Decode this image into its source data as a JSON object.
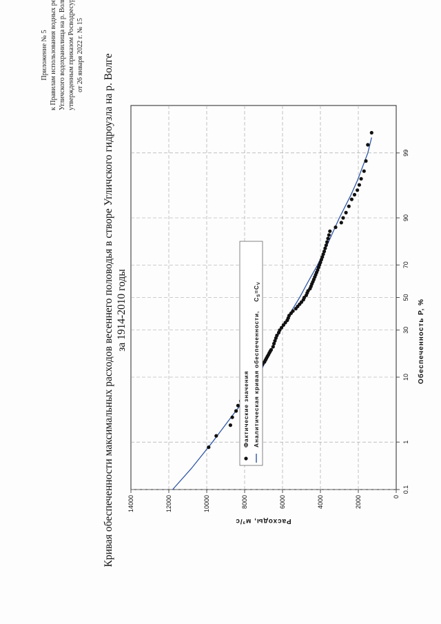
{
  "appendix": {
    "line1": "Приложение № 5",
    "line2": "к Правилам использования водных ресурсов",
    "line3": "Угличского водохранилища на р. Волге,",
    "line4": "утвержденным приказом Росводресурсов",
    "line5": "от 26 января 2022 г. № 15"
  },
  "title": {
    "line1": "Кривая обеспеченности максимальных расходов весеннего половодья в створе Угличского гидроузла на р. Волге",
    "line2": "за 1914-2010 годы"
  },
  "chart_data": {
    "type": "scatter",
    "xlabel": "Обеспеченность P, %",
    "ylabel": "Расходы, м³/с",
    "x_scale": "probability",
    "x_ticks": [
      "0.1",
      "1",
      "10",
      "30",
      "50",
      "70",
      "90",
      "99"
    ],
    "x_tick_values": [
      0.1,
      1,
      10,
      30,
      50,
      70,
      90,
      99
    ],
    "y_ticks": [
      "0",
      "2000",
      "4000",
      "6000",
      "8000",
      "10000",
      "12000",
      "14000"
    ],
    "y_tick_values": [
      0,
      2000,
      4000,
      6000,
      8000,
      10000,
      12000,
      14000
    ],
    "ylim": [
      0,
      14000
    ],
    "xlim": [
      0.1,
      99.9
    ],
    "grid": true,
    "legend_position": "top-left",
    "legend": {
      "points_label": "Фактические значения",
      "curve_label_prefix": "Аналитическая кривая обеспеченности,",
      "curve_formula_cs": "C",
      "curve_formula_cs_sub": "S",
      "curve_formula_eq": "=C",
      "curve_formula_cv_sub": "V"
    },
    "colors": {
      "points": "#111111",
      "curve": "#2f56a6",
      "grid": "#9a9a9a"
    },
    "series": [
      {
        "name": "Фактические значения",
        "points": [
          [
            0.8,
            9900
          ],
          [
            1.3,
            9500
          ],
          [
            2.0,
            8750
          ],
          [
            2.7,
            8650
          ],
          [
            3.4,
            8450
          ],
          [
            4.1,
            8350
          ],
          [
            4.8,
            8200
          ],
          [
            5.6,
            8050
          ],
          [
            6.3,
            7900
          ],
          [
            7.0,
            7850
          ],
          [
            7.7,
            7750
          ],
          [
            8.5,
            7650
          ],
          [
            9.2,
            7500
          ],
          [
            9.9,
            7450
          ],
          [
            10.6,
            7400
          ],
          [
            11.3,
            7350
          ],
          [
            12.1,
            7300
          ],
          [
            12.8,
            7200
          ],
          [
            13.5,
            7150
          ],
          [
            14.2,
            7050
          ],
          [
            15.0,
            6950
          ],
          [
            15.7,
            6900
          ],
          [
            16.4,
            6850
          ],
          [
            17.1,
            6800
          ],
          [
            17.8,
            6750
          ],
          [
            18.6,
            6700
          ],
          [
            19.3,
            6650
          ],
          [
            20.0,
            6600
          ],
          [
            21.4,
            6500
          ],
          [
            22.9,
            6450
          ],
          [
            24.3,
            6400
          ],
          [
            25.7,
            6350
          ],
          [
            27.1,
            6300
          ],
          [
            28.6,
            6200
          ],
          [
            30.0,
            6150
          ],
          [
            31.4,
            6050
          ],
          [
            32.9,
            5950
          ],
          [
            34.3,
            5850
          ],
          [
            35.7,
            5750
          ],
          [
            37.1,
            5700
          ],
          [
            38.6,
            5650
          ],
          [
            40.0,
            5550
          ],
          [
            41.4,
            5450
          ],
          [
            42.9,
            5300
          ],
          [
            44.3,
            5200
          ],
          [
            45.7,
            5100
          ],
          [
            47.1,
            5000
          ],
          [
            48.6,
            4900
          ],
          [
            50.0,
            4850
          ],
          [
            51.4,
            4750
          ],
          [
            52.9,
            4700
          ],
          [
            54.3,
            4650
          ],
          [
            55.7,
            4550
          ],
          [
            57.1,
            4500
          ],
          [
            58.6,
            4450
          ],
          [
            60.0,
            4400
          ],
          [
            61.4,
            4350
          ],
          [
            62.9,
            4300
          ],
          [
            64.3,
            4250
          ],
          [
            65.7,
            4200
          ],
          [
            67.1,
            4150
          ],
          [
            68.6,
            4100
          ],
          [
            70.0,
            4050
          ],
          [
            71.4,
            4000
          ],
          [
            72.9,
            3950
          ],
          [
            74.3,
            3900
          ],
          [
            75.7,
            3850
          ],
          [
            77.1,
            3800
          ],
          [
            78.6,
            3750
          ],
          [
            80.0,
            3700
          ],
          [
            81.4,
            3650
          ],
          [
            82.9,
            3600
          ],
          [
            84.3,
            3550
          ],
          [
            85.7,
            3500
          ],
          [
            87.1,
            3200
          ],
          [
            88.6,
            2900
          ],
          [
            90.0,
            2800
          ],
          [
            91.4,
            2650
          ],
          [
            92.9,
            2500
          ],
          [
            94.3,
            2350
          ],
          [
            95.1,
            2200
          ],
          [
            95.8,
            2050
          ],
          [
            96.5,
            1950
          ],
          [
            97.2,
            1850
          ],
          [
            97.9,
            1700
          ],
          [
            98.6,
            1600
          ],
          [
            99.3,
            1500
          ],
          [
            99.6,
            1300
          ]
        ]
      },
      {
        "name": "Аналитическая кривая обеспеченности",
        "points": [
          [
            0.1,
            11800
          ],
          [
            0.3,
            10800
          ],
          [
            1,
            9700
          ],
          [
            3,
            8600
          ],
          [
            5,
            8000
          ],
          [
            10,
            7300
          ],
          [
            20,
            6600
          ],
          [
            30,
            6100
          ],
          [
            40,
            5600
          ],
          [
            50,
            5100
          ],
          [
            60,
            4650
          ],
          [
            70,
            4150
          ],
          [
            80,
            3650
          ],
          [
            90,
            3000
          ],
          [
            95,
            2400
          ],
          [
            97,
            2050
          ],
          [
            99,
            1500
          ],
          [
            99.5,
            1300
          ]
        ]
      }
    ]
  }
}
